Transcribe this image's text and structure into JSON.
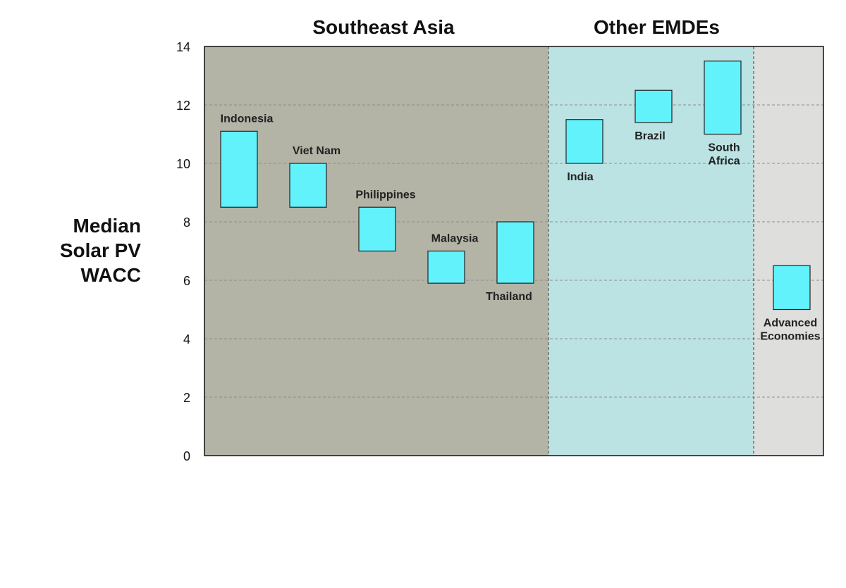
{
  "chart_data": {
    "type": "floating-bar",
    "ylabel_lines": [
      "Median",
      "Solar PV",
      "WACC"
    ],
    "ylim": [
      0,
      14
    ],
    "yticks": [
      "0",
      "2",
      "4",
      "6",
      "8",
      "10",
      "12",
      "14"
    ],
    "grid": true,
    "groups": [
      {
        "title": "Southeast Asia",
        "color": "#b3b3a6"
      },
      {
        "title": "Other EMDEs",
        "color": "#bce3e3"
      },
      {
        "title": "",
        "color": "#dededc"
      }
    ],
    "bar_color": "#62f2fb",
    "bars": [
      {
        "label": "Indonesia",
        "low": 8.5,
        "high": 11.1,
        "group": 0
      },
      {
        "label": "Viet Nam",
        "low": 8.5,
        "high": 10.0,
        "group": 0
      },
      {
        "label": "Philippines",
        "low": 7.0,
        "high": 8.5,
        "group": 0
      },
      {
        "label": "Malaysia",
        "low": 5.9,
        "high": 7.0,
        "group": 0
      },
      {
        "label": "Thailand",
        "low": 5.9,
        "high": 8.0,
        "group": 0
      },
      {
        "label": "India",
        "low": 10.0,
        "high": 11.5,
        "group": 1
      },
      {
        "label": "Brazil",
        "low": 11.4,
        "high": 12.5,
        "group": 1
      },
      {
        "label": "South Africa",
        "low": 11.0,
        "high": 13.5,
        "group": 1
      },
      {
        "label": "Advanced Economies",
        "low": 5.0,
        "high": 6.5,
        "group": 2
      }
    ]
  }
}
